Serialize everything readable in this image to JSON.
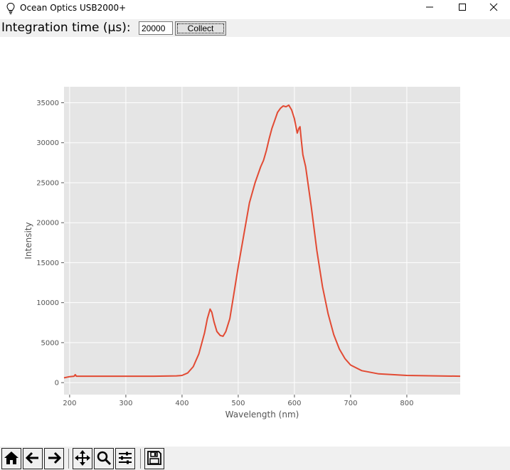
{
  "window": {
    "title": "Ocean Optics USB2000+",
    "icons": {
      "app": "lightbulb-icon",
      "minimize": "minimize-icon",
      "maximize": "maximize-icon",
      "close": "close-icon"
    }
  },
  "controls": {
    "integration_label": "Integration time (µs):",
    "integration_value": "20000",
    "collect_label": "Collect"
  },
  "navigation_toolbar": {
    "buttons": [
      "home-icon",
      "back-arrow-icon",
      "forward-arrow-icon",
      "pan-icon",
      "zoom-icon",
      "configure-subplots-icon",
      "save-icon"
    ]
  },
  "colors": {
    "plot_background": "#e5e5e5",
    "line": "#e24a33",
    "grid": "#ffffff"
  },
  "chart_data": {
    "type": "line",
    "title": "",
    "xlabel": "Wavelength (nm)",
    "ylabel": "Intensity",
    "xlim": [
      190,
      895
    ],
    "ylim": [
      -1500,
      37000
    ],
    "xticks": [
      200,
      300,
      400,
      500,
      600,
      700,
      800
    ],
    "yticks": [
      0,
      5000,
      10000,
      15000,
      20000,
      25000,
      30000,
      35000
    ],
    "grid": true,
    "series": [
      {
        "x": [
          190,
          200,
          208,
          210,
          212,
          250,
          300,
          350,
          390,
          400,
          410,
          420,
          430,
          440,
          445,
          450,
          453,
          457,
          462,
          468,
          473,
          478,
          485,
          492,
          500,
          510,
          520,
          530,
          540,
          545,
          550,
          555,
          560,
          565,
          570,
          575,
          580,
          585,
          590,
          595,
          600,
          605,
          608,
          610,
          612,
          615,
          620,
          630,
          640,
          650,
          660,
          670,
          680,
          690,
          700,
          720,
          750,
          800,
          850,
          895
        ],
        "y": [
          600,
          750,
          800,
          1000,
          800,
          800,
          800,
          800,
          850,
          900,
          1200,
          2000,
          3600,
          6200,
          8000,
          9200,
          8800,
          7600,
          6400,
          5900,
          5800,
          6400,
          8000,
          11000,
          14500,
          18500,
          22500,
          25000,
          27000,
          27800,
          29000,
          30500,
          31800,
          32800,
          33800,
          34300,
          34600,
          34500,
          34700,
          34100,
          33000,
          31200,
          31800,
          32000,
          30500,
          28500,
          27000,
          22000,
          16500,
          12000,
          8600,
          6000,
          4200,
          3000,
          2200,
          1500,
          1100,
          900,
          850,
          800
        ]
      }
    ]
  }
}
